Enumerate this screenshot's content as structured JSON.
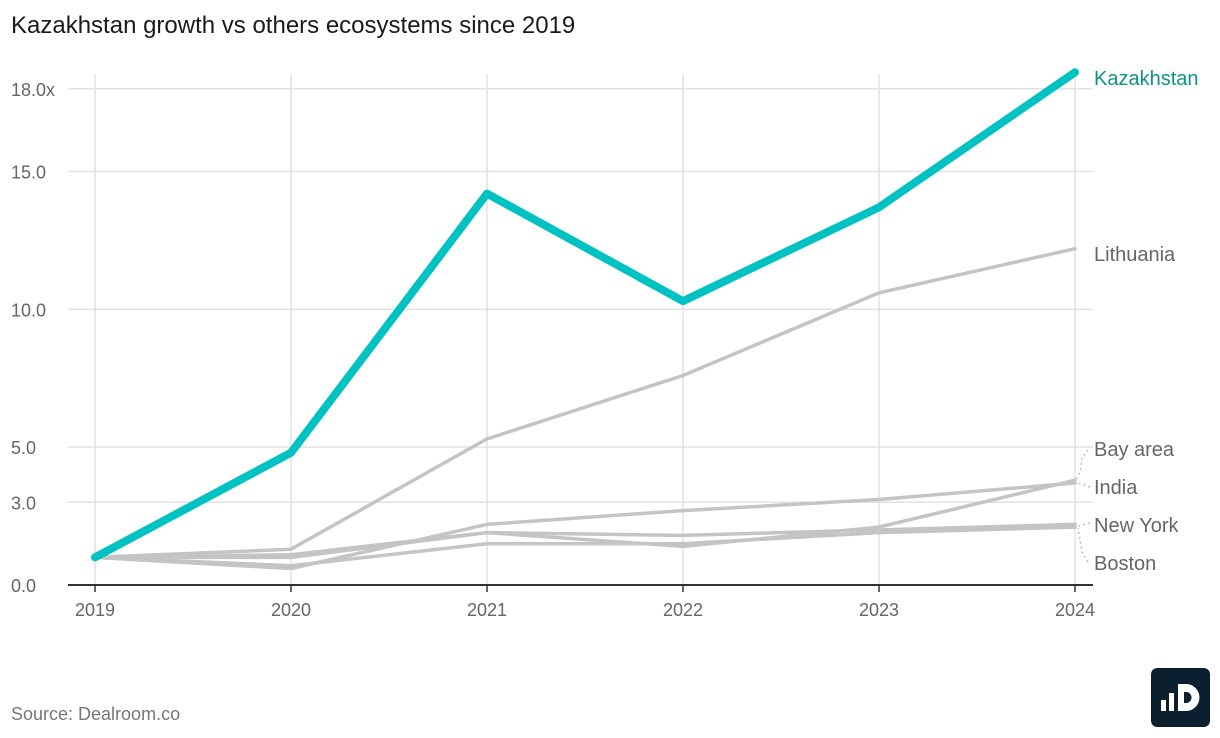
{
  "title": "Kazakhstan growth vs others ecosystems since 2019",
  "source": "Source: Dealroom.co",
  "logo": "dealroom-logo",
  "colors": {
    "highlight": "#00c2c2",
    "highlight_label": "#0d9488",
    "others": "#c4c4c4",
    "grid": "#e2e2e2",
    "axis": "#333333",
    "logo_bg": "#0c1f2e"
  },
  "chart_data": {
    "type": "line",
    "title": "Kazakhstan growth vs others ecosystems since 2019",
    "xlabel": "",
    "ylabel": "",
    "x": [
      "2019",
      "2020",
      "2021",
      "2022",
      "2023",
      "2024"
    ],
    "ylim": [
      0,
      18.9
    ],
    "yticks": [
      0,
      3,
      5,
      10,
      15,
      18
    ],
    "ytick_labels": [
      "0.0",
      "3.0",
      "5.0",
      "10.0",
      "15.0",
      "18.0x"
    ],
    "grid": true,
    "series": [
      {
        "name": "Kazakhstan",
        "values": [
          1.0,
          4.8,
          14.2,
          10.3,
          13.7,
          18.6
        ],
        "highlight": true
      },
      {
        "name": "Lithuania",
        "values": [
          1.0,
          1.3,
          5.3,
          7.6,
          10.6,
          12.2
        ]
      },
      {
        "name": "Bay area",
        "values": [
          1.0,
          1.1,
          1.9,
          1.4,
          2.1,
          3.8
        ]
      },
      {
        "name": "India",
        "values": [
          1.0,
          0.6,
          2.2,
          2.7,
          3.1,
          3.7
        ]
      },
      {
        "name": "New York",
        "values": [
          1.0,
          1.0,
          1.9,
          1.8,
          2.0,
          2.2
        ]
      },
      {
        "name": "Boston",
        "values": [
          1.0,
          0.7,
          1.5,
          1.5,
          1.9,
          2.1
        ]
      }
    ]
  }
}
